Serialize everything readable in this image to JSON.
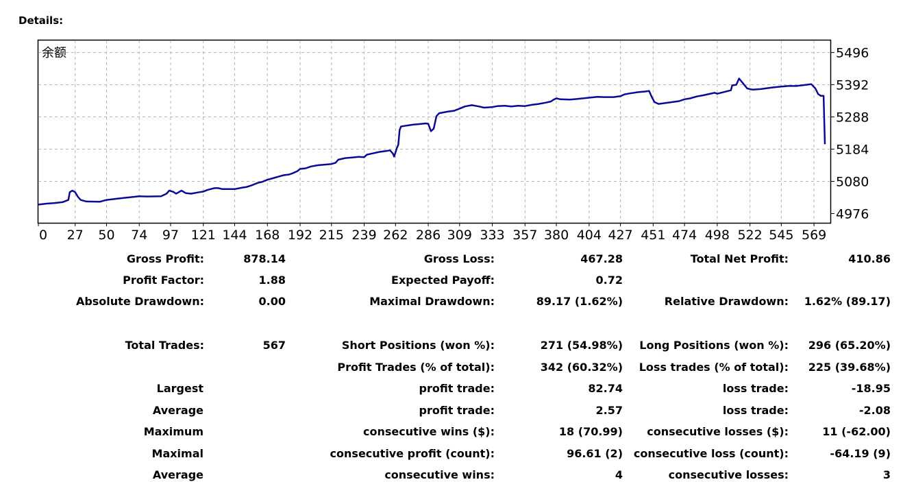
{
  "header": {
    "title": "Details:"
  },
  "chart_data": {
    "type": "line",
    "series_label": "余额",
    "xticks": [
      0,
      27,
      50,
      74,
      97,
      121,
      144,
      168,
      192,
      215,
      239,
      262,
      286,
      309,
      333,
      357,
      380,
      404,
      427,
      451,
      474,
      498,
      522,
      545,
      569
    ],
    "yticks": [
      4976,
      5080,
      5184,
      5288,
      5392,
      5496
    ],
    "xlim": [
      0,
      581
    ],
    "ylim": [
      4946,
      5535
    ],
    "grid": true,
    "series": [
      {
        "color": "#0a0a96",
        "points": [
          [
            0,
            5005
          ],
          [
            6,
            5008
          ],
          [
            12,
            5010
          ],
          [
            18,
            5013
          ],
          [
            22,
            5020
          ],
          [
            23,
            5045
          ],
          [
            25,
            5050
          ],
          [
            27,
            5045
          ],
          [
            29,
            5030
          ],
          [
            31,
            5020
          ],
          [
            35,
            5015
          ],
          [
            45,
            5014
          ],
          [
            50,
            5020
          ],
          [
            60,
            5025
          ],
          [
            70,
            5030
          ],
          [
            74,
            5032
          ],
          [
            80,
            5031
          ],
          [
            90,
            5032
          ],
          [
            94,
            5040
          ],
          [
            96,
            5050
          ],
          [
            99,
            5046
          ],
          [
            101,
            5040
          ],
          [
            103,
            5045
          ],
          [
            105,
            5050
          ],
          [
            108,
            5042
          ],
          [
            112,
            5040
          ],
          [
            118,
            5045
          ],
          [
            121,
            5047
          ],
          [
            124,
            5052
          ],
          [
            129,
            5058
          ],
          [
            132,
            5058
          ],
          [
            135,
            5055
          ],
          [
            144,
            5055
          ],
          [
            150,
            5060
          ],
          [
            153,
            5062
          ],
          [
            157,
            5068
          ],
          [
            161,
            5075
          ],
          [
            164,
            5078
          ],
          [
            168,
            5085
          ],
          [
            172,
            5090
          ],
          [
            176,
            5095
          ],
          [
            180,
            5100
          ],
          [
            184,
            5102
          ],
          [
            187,
            5107
          ],
          [
            190,
            5113
          ],
          [
            192,
            5120
          ],
          [
            196,
            5122
          ],
          [
            200,
            5128
          ],
          [
            205,
            5132
          ],
          [
            210,
            5134
          ],
          [
            215,
            5136
          ],
          [
            218,
            5140
          ],
          [
            220,
            5150
          ],
          [
            225,
            5155
          ],
          [
            230,
            5157
          ],
          [
            235,
            5159
          ],
          [
            239,
            5158
          ],
          [
            241,
            5166
          ],
          [
            245,
            5170
          ],
          [
            250,
            5175
          ],
          [
            255,
            5178
          ],
          [
            258,
            5180
          ],
          [
            260,
            5170
          ],
          [
            261,
            5160
          ],
          [
            263,
            5188
          ],
          [
            264,
            5198
          ],
          [
            265,
            5246
          ],
          [
            266,
            5257
          ],
          [
            270,
            5260
          ],
          [
            275,
            5263
          ],
          [
            280,
            5265
          ],
          [
            284,
            5267
          ],
          [
            286,
            5266
          ],
          [
            288,
            5242
          ],
          [
            290,
            5250
          ],
          [
            292,
            5290
          ],
          [
            294,
            5300
          ],
          [
            300,
            5305
          ],
          [
            305,
            5308
          ],
          [
            309,
            5315
          ],
          [
            313,
            5322
          ],
          [
            318,
            5326
          ],
          [
            323,
            5322
          ],
          [
            327,
            5318
          ],
          [
            333,
            5320
          ],
          [
            337,
            5323
          ],
          [
            342,
            5324
          ],
          [
            347,
            5322
          ],
          [
            352,
            5324
          ],
          [
            357,
            5323
          ],
          [
            362,
            5327
          ],
          [
            367,
            5330
          ],
          [
            372,
            5334
          ],
          [
            376,
            5338
          ],
          [
            378,
            5344
          ],
          [
            380,
            5348
          ],
          [
            383,
            5345
          ],
          [
            390,
            5344
          ],
          [
            395,
            5346
          ],
          [
            404,
            5350
          ],
          [
            410,
            5353
          ],
          [
            415,
            5352
          ],
          [
            422,
            5352
          ],
          [
            427,
            5355
          ],
          [
            430,
            5361
          ],
          [
            434,
            5364
          ],
          [
            440,
            5368
          ],
          [
            445,
            5370
          ],
          [
            448,
            5372
          ],
          [
            450,
            5352
          ],
          [
            452,
            5336
          ],
          [
            455,
            5330
          ],
          [
            460,
            5333
          ],
          [
            465,
            5336
          ],
          [
            470,
            5339
          ],
          [
            474,
            5345
          ],
          [
            478,
            5348
          ],
          [
            483,
            5354
          ],
          [
            488,
            5358
          ],
          [
            492,
            5362
          ],
          [
            496,
            5366
          ],
          [
            498,
            5363
          ],
          [
            508,
            5374
          ],
          [
            509,
            5390
          ],
          [
            512,
            5392
          ],
          [
            514,
            5412
          ],
          [
            517,
            5396
          ],
          [
            520,
            5380
          ],
          [
            524,
            5376
          ],
          [
            530,
            5378
          ],
          [
            535,
            5381
          ],
          [
            540,
            5384
          ],
          [
            545,
            5386
          ],
          [
            550,
            5388
          ],
          [
            556,
            5388
          ],
          [
            562,
            5391
          ],
          [
            567,
            5394
          ],
          [
            570,
            5380
          ],
          [
            572,
            5362
          ],
          [
            574,
            5356
          ],
          [
            576,
            5356
          ],
          [
            577,
            5200
          ]
        ]
      }
    ]
  },
  "stats": {
    "gross_profit_label": "Gross Profit:",
    "gross_profit": "878.14",
    "gross_loss_label": "Gross Loss:",
    "gross_loss": "467.28",
    "total_net_profit_label": "Total Net Profit:",
    "total_net_profit": "410.86",
    "profit_factor_label": "Profit Factor:",
    "profit_factor": "1.88",
    "expected_payoff_label": "Expected Payoff:",
    "expected_payoff": "0.72",
    "absolute_drawdown_label": "Absolute Drawdown:",
    "absolute_drawdown": "0.00",
    "maximal_drawdown_label": "Maximal Drawdown:",
    "maximal_drawdown": "89.17 (1.62%)",
    "relative_drawdown_label": "Relative Drawdown:",
    "relative_drawdown": "1.62% (89.17)",
    "total_trades_label": "Total Trades:",
    "total_trades": "567",
    "short_positions_label": "Short Positions (won %):",
    "short_positions": "271 (54.98%)",
    "long_positions_label": "Long Positions (won %):",
    "long_positions": "296 (65.20%)",
    "profit_trades_label": "Profit Trades (% of total):",
    "profit_trades": "342 (60.32%)",
    "loss_trades_label": "Loss trades (% of total):",
    "loss_trades": "225 (39.68%)",
    "largest_label": "Largest",
    "largest_profit_trade_label": "profit trade:",
    "largest_profit_trade": "82.74",
    "largest_loss_trade_label": "loss trade:",
    "largest_loss_trade": "-18.95",
    "average_label": "Average",
    "average_profit_trade_label": "profit trade:",
    "average_profit_trade": "2.57",
    "average_loss_trade_label": "loss trade:",
    "average_loss_trade": "-2.08",
    "maximum_label": "Maximum",
    "max_consec_wins_label": "consecutive wins ($):",
    "max_consec_wins": "18 (70.99)",
    "max_consec_losses_label": "consecutive losses ($):",
    "max_consec_losses": "11 (-62.00)",
    "maximal_label": "Maximal",
    "maximal_consec_profit_label": "consecutive profit (count):",
    "maximal_consec_profit": "96.61 (2)",
    "maximal_consec_loss_label": "consecutive loss (count):",
    "maximal_consec_loss": "-64.19 (9)",
    "average2_label": "Average",
    "avg_consec_wins_label": "consecutive wins:",
    "avg_consec_wins": "4",
    "avg_consec_losses_label": "consecutive losses:",
    "avg_consec_losses": "3"
  }
}
